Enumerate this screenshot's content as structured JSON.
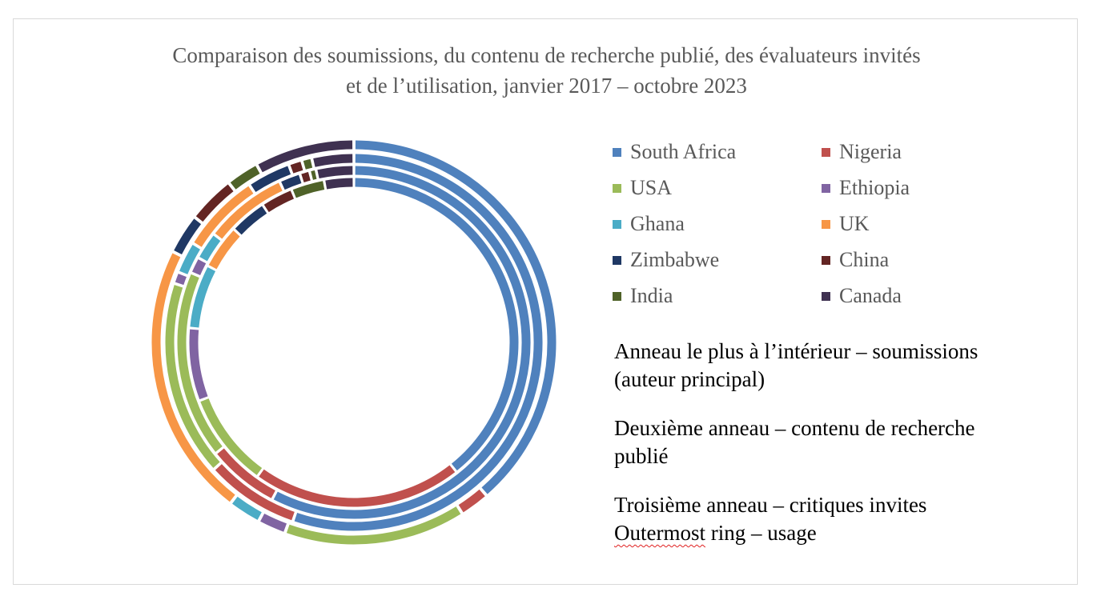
{
  "chart_data": {
    "type": "donut",
    "title_lines": [
      "Comparaison des soumissions, du contenu de recherche publié, des évaluateurs invités",
      "et de l’utilisation, janvier 2017 – octobre 2023"
    ],
    "categories": [
      "South Africa",
      "Nigeria",
      "USA",
      "Ethiopia",
      "Ghana",
      "UK",
      "Zimbabwe",
      "China",
      "India",
      "Canada"
    ],
    "colors": [
      "#4f81bd",
      "#c0504d",
      "#9bbb59",
      "#8064a2",
      "#4bacc6",
      "#f79646",
      "#1f3864",
      "#632523",
      "#4f6228",
      "#3f3151"
    ],
    "series": [
      {
        "name": "Anneau le plus à l’intérieur – soumissions (auteur principal)",
        "values": [
          32.5,
          17.0,
          7.7,
          5.9,
          5.2,
          3.6,
          3.0,
          2.6,
          2.7,
          2.4
        ]
      },
      {
        "name": "Deuxième anneau – contenu de recherche publié",
        "values": [
          38.5,
          4.4,
          11.5,
          1.0,
          1.7,
          5.1,
          1.3,
          0.6,
          0.4,
          2.3
        ]
      },
      {
        "name": "Troisième anneau – critiques invites",
        "values": [
          38.5,
          5.6,
          11.7,
          0.7,
          1.9,
          4.8,
          2.6,
          0.8,
          0.6,
          2.5
        ]
      },
      {
        "name": "Outermost ring – usage",
        "values": [
          32.5,
          2.0,
          12.2,
          1.9,
          2.2,
          18.5,
          2.7,
          3.2,
          2.2,
          6.7
        ]
      }
    ],
    "legend_position": "right",
    "ring_order": "inner-to-outer"
  },
  "notes": [
    {
      "lines": [
        "Anneau le plus à l’intérieur – soumissions",
        "(auteur principal)"
      ]
    },
    {
      "lines": [
        "Deuxième anneau – contenu de recherche",
        "publié"
      ]
    },
    {
      "lines": [
        "Troisième anneau – critiques invites"
      ],
      "lines2_first": "Outermost",
      "lines2_rest": " ring – usage"
    }
  ]
}
